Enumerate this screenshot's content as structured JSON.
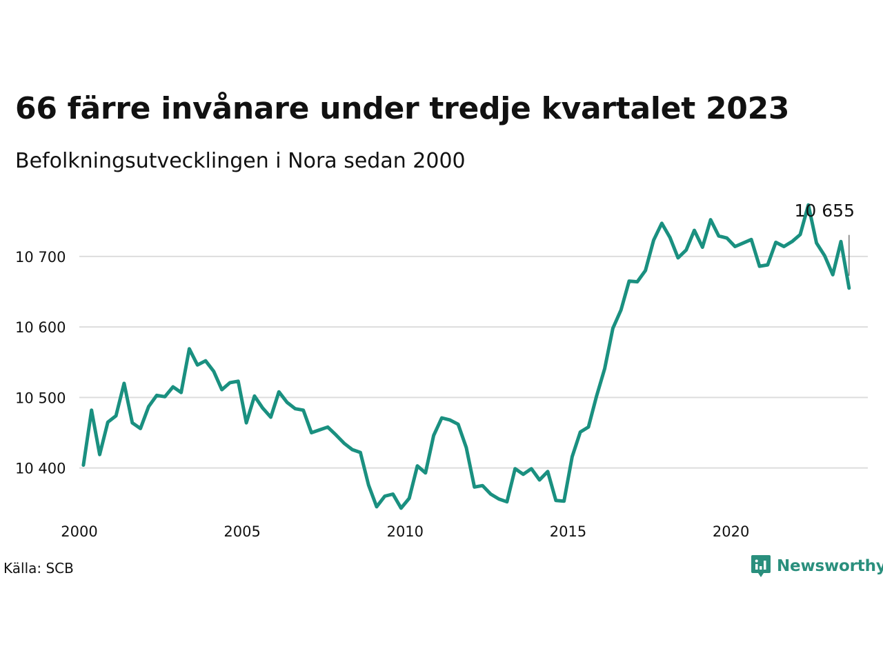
{
  "title": "66 färre invånare under tredje kvartalet 2023",
  "subtitle": "Befolkningsutvecklingen i Nora sedan 2000",
  "source": "Källa: SCB",
  "brand": {
    "name": "Newsworthy",
    "icon": "newsworthy-logo-icon",
    "color": "#2a8f7d"
  },
  "colors": {
    "line": "#1a9080",
    "grid": "#dddddd"
  },
  "chart_data": {
    "type": "line",
    "title": "66 färre invånare under tredje kvartalet 2023",
    "subtitle": "Befolkningsutvecklingen i Nora sedan 2000",
    "xlabel": "",
    "ylabel": "",
    "xlim": [
      2000,
      2024.2
    ],
    "ylim": [
      10340,
      10780
    ],
    "x_ticks": [
      2000,
      2005,
      2010,
      2015,
      2020
    ],
    "x_tick_labels": [
      "2000",
      "2005",
      "2010",
      "2015",
      "2020"
    ],
    "y_ticks": [
      10400,
      10500,
      10600,
      10700
    ],
    "y_tick_labels": [
      "10 400",
      "10 500",
      "10 600",
      "10 700"
    ],
    "grid": "horizontal",
    "end_label": "10 655",
    "series": [
      {
        "x": [
          2000.125,
          2000.375,
          2000.625,
          2000.875,
          2001.125,
          2001.375,
          2001.625,
          2001.875,
          2002.125,
          2002.375,
          2002.625,
          2002.875,
          2003.125,
          2003.375,
          2003.625,
          2003.875,
          2004.125,
          2004.375,
          2004.625,
          2004.875,
          2005.125,
          2005.375,
          2005.625,
          2005.875,
          2006.125,
          2006.375,
          2006.625,
          2006.875,
          2007.125,
          2007.375,
          2007.625,
          2007.875,
          2008.125,
          2008.375,
          2008.625,
          2008.875,
          2009.125,
          2009.375,
          2009.625,
          2009.875,
          2010.125,
          2010.375,
          2010.625,
          2010.875,
          2011.125,
          2011.375,
          2011.625,
          2011.875,
          2012.125,
          2012.375,
          2012.625,
          2012.875,
          2013.125,
          2013.375,
          2013.625,
          2013.875,
          2014.125,
          2014.375,
          2014.625,
          2014.875,
          2015.125,
          2015.375,
          2015.625,
          2015.875,
          2016.125,
          2016.375,
          2016.625,
          2016.875,
          2017.125,
          2017.375,
          2017.625,
          2017.875,
          2018.125,
          2018.375,
          2018.625,
          2018.875,
          2019.125,
          2019.375,
          2019.625,
          2019.875,
          2020.125,
          2020.375,
          2020.625,
          2020.875,
          2021.125,
          2021.375,
          2021.625,
          2021.875,
          2022.125,
          2022.375,
          2022.625,
          2022.875,
          2023.125,
          2023.375,
          2023.625
        ],
        "values": [
          10404,
          10482,
          10419,
          10465,
          10474,
          10520,
          10464,
          10456,
          10487,
          10503,
          10501,
          10515,
          10507,
          10569,
          10546,
          10552,
          10537,
          10511,
          10521,
          10523,
          10464,
          10502,
          10485,
          10472,
          10508,
          10493,
          10484,
          10482,
          10450,
          10454,
          10458,
          10447,
          10435,
          10426,
          10422,
          10376,
          10345,
          10360,
          10363,
          10343,
          10357,
          10403,
          10393,
          10446,
          10471,
          10468,
          10462,
          10429,
          10373,
          10375,
          10363,
          10356,
          10352,
          10399,
          10391,
          10399,
          10383,
          10395,
          10354,
          10353,
          10416,
          10451,
          10458,
          10502,
          10541,
          10598,
          10624,
          10665,
          10664,
          10680,
          10723,
          10747,
          10727,
          10698,
          10709,
          10737,
          10713,
          10752,
          10729,
          10726,
          10714,
          10719,
          10724,
          10686,
          10688,
          10720,
          10714,
          10721,
          10731,
          10773,
          10719,
          10701,
          10674,
          10721,
          10655
        ]
      }
    ]
  }
}
